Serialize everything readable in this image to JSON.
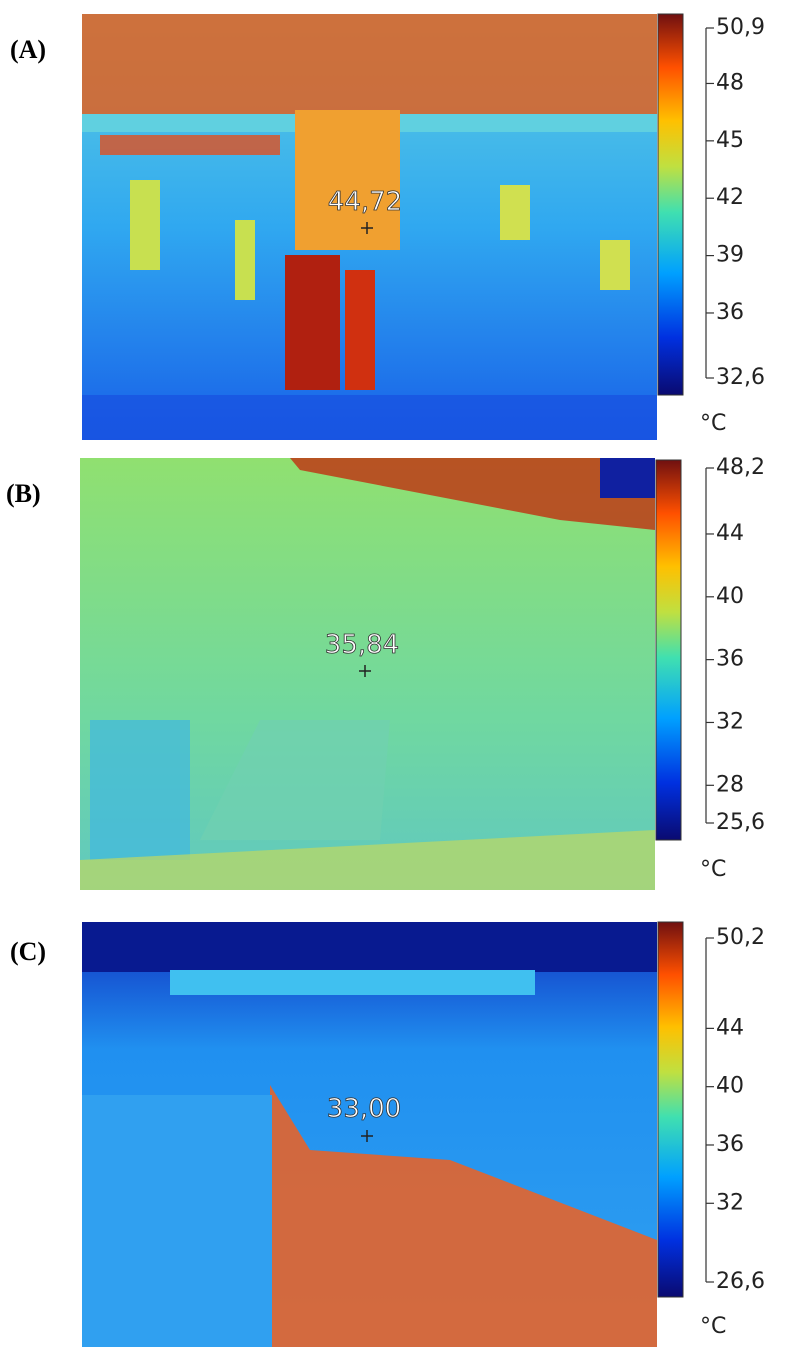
{
  "panels": [
    {
      "label": "(A)",
      "spot_temperature": "44,72",
      "unit": "°C",
      "colorbar": {
        "ticks": [
          {
            "value": 50.9,
            "label": "50,9"
          },
          48,
          45,
          42,
          39,
          36,
          {
            "value": 32.6,
            "label": "32,6"
          }
        ]
      }
    },
    {
      "label": "(B)",
      "spot_temperature": "35,84",
      "unit": "°C",
      "colorbar": {
        "ticks": [
          {
            "value": 48.2,
            "label": "48,2"
          },
          44,
          40,
          36,
          32,
          28,
          {
            "value": 25.6,
            "label": "25,6"
          }
        ]
      }
    },
    {
      "label": "(C)",
      "spot_temperature": "33,00",
      "unit": "°C",
      "colorbar": {
        "ticks": [
          {
            "value": 50.2,
            "label": "50,2"
          },
          44,
          40,
          36,
          32,
          {
            "value": 26.6,
            "label": "26,6"
          }
        ]
      }
    }
  ]
}
